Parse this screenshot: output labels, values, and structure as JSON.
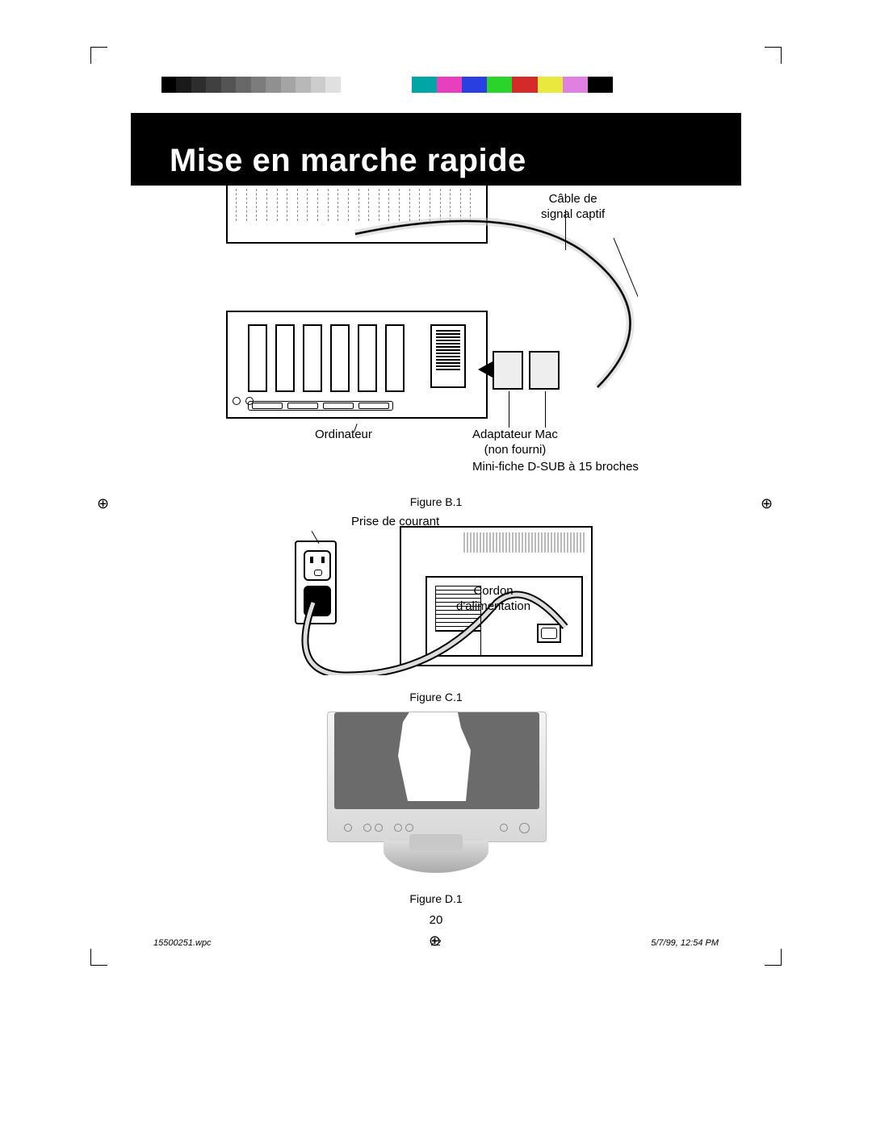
{
  "title": "Mise en marche rapide",
  "figureB": {
    "caption": "Figure B.1",
    "labels": {
      "signalCable": "Câble de\nsignal captif",
      "computer": "Ordinateur",
      "adapter": "Adaptateur Mac\n(non fourni)",
      "dsub": "Mini-fiche D-SUB à 15 broches"
    }
  },
  "figureC": {
    "caption": "Figure C.1",
    "labels": {
      "outlet": "Prise de courant",
      "powerCord": "Cordon\nd'alimentation"
    }
  },
  "figureD": {
    "caption": "Figure D.1"
  },
  "pageNumber": "20",
  "footer": {
    "filename": "15500251.wpc",
    "sheet": "22",
    "datetime": "5/7/99, 12:54 PM"
  },
  "graybar_colors": [
    "#000000",
    "#1a1a1a",
    "#2d2d2d",
    "#404040",
    "#545454",
    "#686868",
    "#7c7c7c",
    "#909090",
    "#a4a4a4",
    "#b8b8b8",
    "#cccccc",
    "#e0e0e0",
    "#ffffff"
  ],
  "colorbar_colors": [
    "#00a5a5",
    "#e83fbf",
    "#2a3fe0",
    "#2ad42a",
    "#d42a2a",
    "#e8e83f",
    "#e080e0",
    "#000000",
    "#ffffff"
  ],
  "background": "#ffffff"
}
